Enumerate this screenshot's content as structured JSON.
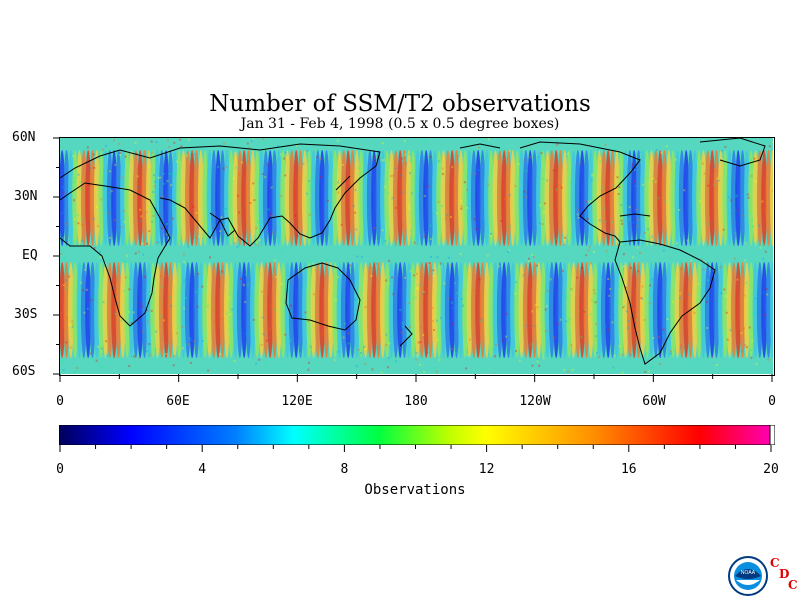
{
  "title": "Number of SSM/T2 observations",
  "subtitle": "Jan 31 - Feb 4, 1998 (0.5 x 0.5 degree boxes)",
  "map": {
    "lat_labels": [
      "60N",
      "30N",
      "EQ",
      "30S",
      "60S"
    ],
    "lon_labels": [
      "0",
      "60E",
      "120E",
      "180",
      "120W",
      "60W",
      "0"
    ],
    "lat_range": [
      -60,
      60
    ],
    "lon_range": [
      0,
      360
    ],
    "field_note_colors": [
      "#00008f",
      "#0000ff",
      "#0090ff",
      "#00ffff",
      "#00ff00",
      "#ffff00",
      "#ff9000",
      "#ff0000",
      "#ff0090"
    ]
  },
  "colorbar": {
    "ticks": [
      "0",
      "4",
      "8",
      "12",
      "16",
      "20"
    ],
    "range": [
      0,
      20
    ],
    "title": "Observations"
  },
  "logo": {
    "name": "NOAA",
    "letters": [
      "C",
      "D",
      "C"
    ]
  }
}
